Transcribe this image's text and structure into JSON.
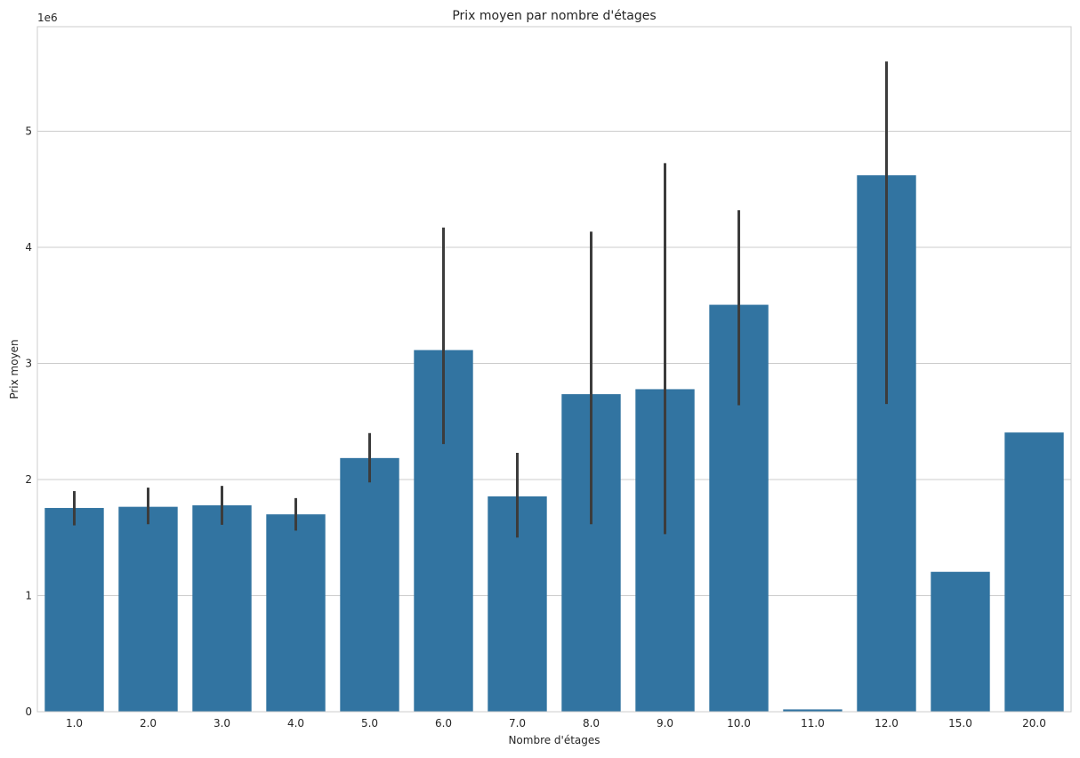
{
  "chart_data": {
    "type": "bar",
    "title": "Prix moyen par nombre d'étages",
    "xlabel": "Nombre d'étages",
    "ylabel": "Prix moyen",
    "y_offset_label": "1e6",
    "y_scale": 1000000,
    "ylim": [
      0,
      5900000
    ],
    "yticks": [
      0,
      1,
      2,
      3,
      4,
      5
    ],
    "grid": "horizontal",
    "categories": [
      "1.0",
      "2.0",
      "3.0",
      "4.0",
      "5.0",
      "6.0",
      "7.0",
      "8.0",
      "9.0",
      "10.0",
      "11.0",
      "12.0",
      "15.0",
      "20.0"
    ],
    "values": [
      1755000,
      1765000,
      1778000,
      1700000,
      2185000,
      3115000,
      1855000,
      2735000,
      2778000,
      3505000,
      20000,
      4620000,
      1205000,
      2405000
    ],
    "ci_low": [
      1605000,
      1615000,
      1610000,
      1560000,
      1975000,
      2305000,
      1500000,
      1615000,
      1530000,
      2640000,
      null,
      2650000,
      null,
      null
    ],
    "ci_high": [
      1900000,
      1930000,
      1945000,
      1840000,
      2400000,
      4170000,
      2230000,
      4135000,
      4725000,
      4320000,
      null,
      5600000,
      null,
      null
    ],
    "colors": {
      "bar": "#3274a1",
      "errorbar": "#3c3c3c",
      "grid": "#cccccc",
      "spine": "#cccccc"
    }
  }
}
